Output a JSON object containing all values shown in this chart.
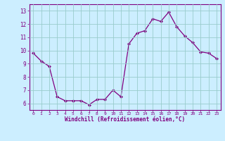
{
  "xlabel": "Windchill (Refroidissement éolien,°C)",
  "x_values": [
    0,
    1,
    2,
    3,
    4,
    5,
    6,
    7,
    8,
    9,
    10,
    11,
    12,
    13,
    14,
    15,
    16,
    17,
    18,
    19,
    20,
    21,
    22,
    23
  ],
  "y_values": [
    9.8,
    9.2,
    8.8,
    6.5,
    6.2,
    6.2,
    6.2,
    5.9,
    6.3,
    6.3,
    7.0,
    6.5,
    10.5,
    11.3,
    11.5,
    12.4,
    12.2,
    12.9,
    11.8,
    11.1,
    10.6,
    9.9,
    9.8,
    9.4
  ],
  "line_color": "#800080",
  "marker_color": "#800080",
  "bg_color": "#cceeff",
  "grid_color": "#99cccc",
  "axis_color": "#800080",
  "tick_label_color": "#800080",
  "xlabel_color": "#800080",
  "ylim": [
    5.5,
    13.5
  ],
  "xlim": [
    -0.5,
    23.5
  ],
  "yticks": [
    6,
    7,
    8,
    9,
    10,
    11,
    12,
    13
  ],
  "xticks": [
    0,
    1,
    2,
    3,
    4,
    5,
    6,
    7,
    8,
    9,
    10,
    11,
    12,
    13,
    14,
    15,
    16,
    17,
    18,
    19,
    20,
    21,
    22,
    23
  ]
}
